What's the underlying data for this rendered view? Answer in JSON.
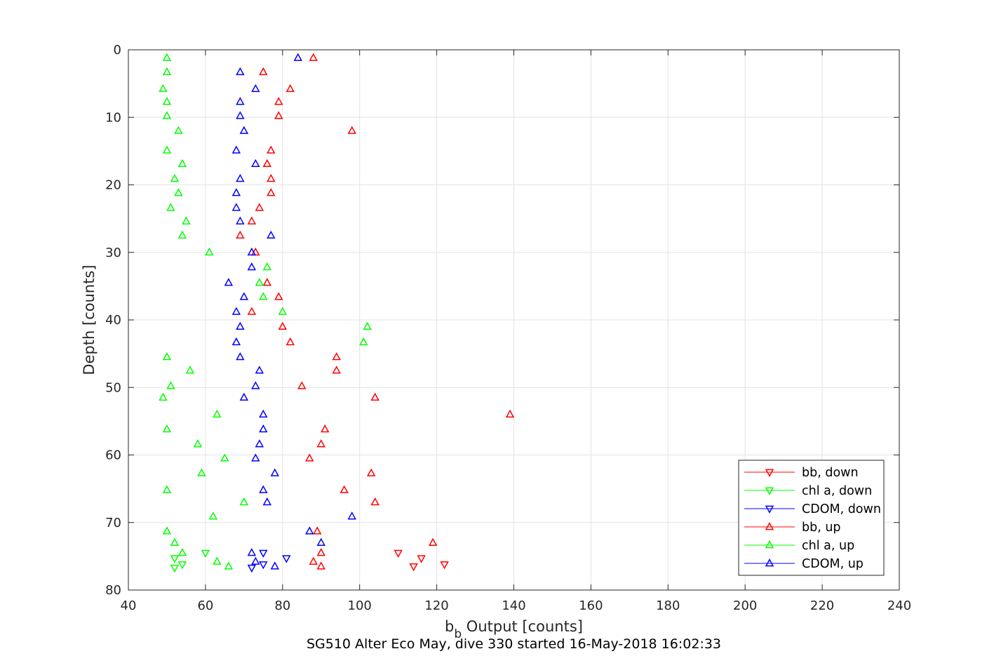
{
  "chart_data": {
    "type": "scatter",
    "xlabel": "b",
    "xlabel_subscript": "b",
    "xlabel_rest": " Output [counts]",
    "ylabel": "Depth [counts]",
    "caption": "SG510 Alter Eco May, dive 330 started 16-May-2018 16:02:33",
    "xlim": [
      40,
      240
    ],
    "ylim": [
      0,
      80
    ],
    "y_reversed": true,
    "xticks": [
      "40",
      "60",
      "80",
      "100",
      "120",
      "140",
      "160",
      "180",
      "200",
      "220",
      "240"
    ],
    "yticks": [
      "0",
      "10",
      "20",
      "30",
      "40",
      "50",
      "60",
      "70",
      "80"
    ],
    "grid": true,
    "legend_position": "bottom-right",
    "series": [
      {
        "name": "bb, down",
        "color": "#ff0000",
        "marker": "triangle-down",
        "points": [
          [
            110,
            74.5
          ],
          [
            116,
            75.3
          ],
          [
            114,
            76.5
          ],
          [
            122,
            76.2
          ]
        ]
      },
      {
        "name": "chl a, down",
        "color": "#00ff00",
        "marker": "triangle-down",
        "points": [
          [
            60,
            74.5
          ],
          [
            52,
            75.3
          ],
          [
            54,
            76.2
          ],
          [
            52,
            76.7
          ]
        ]
      },
      {
        "name": "CDOM, down",
        "color": "#0000ff",
        "marker": "triangle-down",
        "points": [
          [
            75,
            74.5
          ],
          [
            81,
            75.3
          ],
          [
            75,
            76.2
          ],
          [
            72,
            76.7
          ]
        ]
      },
      {
        "name": "bb, up",
        "color": "#ff0000",
        "marker": "triangle-up",
        "points": [
          [
            88,
            1.2
          ],
          [
            75,
            3.3
          ],
          [
            82,
            5.8
          ],
          [
            79,
            7.7
          ],
          [
            79,
            9.8
          ],
          [
            98,
            12.0
          ],
          [
            77,
            14.9
          ],
          [
            76,
            16.9
          ],
          [
            77,
            19.1
          ],
          [
            77,
            21.2
          ],
          [
            74,
            23.4
          ],
          [
            72,
            25.4
          ],
          [
            69,
            27.5
          ],
          [
            73,
            30.0
          ],
          [
            76,
            34.5
          ],
          [
            79,
            36.6
          ],
          [
            72,
            38.8
          ],
          [
            80,
            41.0
          ],
          [
            82,
            43.3
          ],
          [
            94,
            45.5
          ],
          [
            94,
            47.5
          ],
          [
            85,
            49.8
          ],
          [
            104,
            51.5
          ],
          [
            139,
            54.0
          ],
          [
            91,
            56.2
          ],
          [
            90,
            58.4
          ],
          [
            87,
            60.5
          ],
          [
            103,
            62.7
          ],
          [
            96,
            65.2
          ],
          [
            104,
            67.0
          ],
          [
            89,
            71.3
          ],
          [
            119,
            73.0
          ],
          [
            90,
            74.5
          ],
          [
            88,
            75.8
          ],
          [
            90,
            76.5
          ]
        ]
      },
      {
        "name": "chl a, up",
        "color": "#00ff00",
        "marker": "triangle-up",
        "points": [
          [
            50,
            1.2
          ],
          [
            50,
            3.3
          ],
          [
            49,
            5.8
          ],
          [
            50,
            7.7
          ],
          [
            50,
            9.8
          ],
          [
            53,
            12.0
          ],
          [
            50,
            14.9
          ],
          [
            54,
            16.9
          ],
          [
            52,
            19.1
          ],
          [
            53,
            21.2
          ],
          [
            51,
            23.4
          ],
          [
            55,
            25.4
          ],
          [
            54,
            27.5
          ],
          [
            61,
            30.0
          ],
          [
            76,
            32.2
          ],
          [
            74,
            34.5
          ],
          [
            75,
            36.6
          ],
          [
            80,
            38.8
          ],
          [
            102,
            41.0
          ],
          [
            101,
            43.3
          ],
          [
            50,
            45.5
          ],
          [
            56,
            47.5
          ],
          [
            51,
            49.8
          ],
          [
            49,
            51.5
          ],
          [
            63,
            54.0
          ],
          [
            50,
            56.2
          ],
          [
            58,
            58.4
          ],
          [
            65,
            60.5
          ],
          [
            59,
            62.7
          ],
          [
            50,
            65.2
          ],
          [
            70,
            67.0
          ],
          [
            62,
            69.1
          ],
          [
            50,
            71.3
          ],
          [
            52,
            73.0
          ],
          [
            54,
            74.5
          ],
          [
            63,
            75.8
          ],
          [
            66,
            76.5
          ]
        ]
      },
      {
        "name": "CDOM, up",
        "color": "#0000ff",
        "marker": "triangle-up",
        "points": [
          [
            84,
            1.2
          ],
          [
            69,
            3.3
          ],
          [
            73,
            5.8
          ],
          [
            69,
            7.7
          ],
          [
            69,
            9.8
          ],
          [
            70,
            12.0
          ],
          [
            68,
            14.9
          ],
          [
            73,
            16.9
          ],
          [
            69,
            19.1
          ],
          [
            68,
            21.2
          ],
          [
            68,
            23.4
          ],
          [
            69,
            25.4
          ],
          [
            77,
            27.5
          ],
          [
            72,
            30.0
          ],
          [
            72,
            32.2
          ],
          [
            66,
            34.5
          ],
          [
            70,
            36.6
          ],
          [
            68,
            38.8
          ],
          [
            69,
            41.0
          ],
          [
            68,
            43.3
          ],
          [
            69,
            45.5
          ],
          [
            74,
            47.5
          ],
          [
            73,
            49.8
          ],
          [
            70,
            51.5
          ],
          [
            75,
            54.0
          ],
          [
            75,
            56.2
          ],
          [
            74,
            58.4
          ],
          [
            73,
            60.5
          ],
          [
            78,
            62.7
          ],
          [
            75,
            65.2
          ],
          [
            76,
            67.0
          ],
          [
            98,
            69.1
          ],
          [
            87,
            71.3
          ],
          [
            90,
            73.0
          ],
          [
            72,
            74.5
          ],
          [
            73,
            75.8
          ],
          [
            78,
            76.5
          ]
        ]
      }
    ]
  }
}
